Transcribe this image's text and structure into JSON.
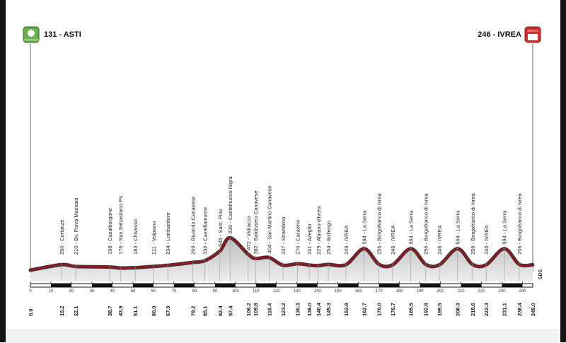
{
  "chart_data": {
    "type": "area",
    "start": {
      "label": "131 - ASTI",
      "altitude": 131,
      "badge": "PARTENZA"
    },
    "finish": {
      "label": "246 - IVREA",
      "altitude": 246,
      "badge": "ARRIVO"
    },
    "x_ticks": [
      0,
      10,
      20,
      30,
      40,
      50,
      60,
      70,
      80,
      90,
      100,
      110,
      120,
      130,
      140,
      150,
      160,
      170,
      180,
      190,
      200,
      210,
      220,
      230,
      240
    ],
    "xlim": [
      0,
      245
    ],
    "ylim": [
      100,
      900
    ],
    "points": [
      {
        "km": "0.0",
        "x": 0.0,
        "alt": 131
      },
      {
        "km": "15.2",
        "x": 15.2,
        "alt": 250,
        "label": "250 - Cortanze"
      },
      {
        "km": "22.1",
        "x": 22.1,
        "alt": 210,
        "label": "210 - Bv. Piovà Massaia"
      },
      {
        "km": "38.7",
        "x": 38.7,
        "alt": 198,
        "label": "198 - Casalborgone"
      },
      {
        "km": "43.9",
        "x": 43.9,
        "alt": 176,
        "label": "176 - San Sebastiano Po"
      },
      {
        "km": "51.1",
        "x": 51.1,
        "alt": 183,
        "label": "183 - Chivasso"
      },
      {
        "km": "60.0",
        "x": 60.0,
        "alt": 211,
        "label": "211 - Volpiano"
      },
      {
        "km": "67.0",
        "x": 67.0,
        "alt": 234,
        "label": "234 - Lombardore"
      },
      {
        "km": "79.2",
        "x": 79.2,
        "alt": 299,
        "label": "299 - Rivarolo Canavese"
      },
      {
        "km": "85.1",
        "x": 85.1,
        "alt": 336,
        "label": "336 - Castellamonte"
      },
      {
        "km": "92.4",
        "x": 92.4,
        "alt": 545,
        "label": "545 - Sant. Piov"
      },
      {
        "km": "97.4",
        "x": 97.4,
        "alt": 830,
        "label": "830 - Castelnuovo Nigra"
      },
      {
        "km": "106.2",
        "x": 106.2,
        "alt": 472,
        "label": "472 - Vidracco"
      },
      {
        "km": "109.8",
        "x": 109.8,
        "alt": 382,
        "label": "382 - Baldissero Canavese"
      },
      {
        "km": "116.4",
        "x": 116.4,
        "alt": 404,
        "label": "404 - San Martino Canavese"
      },
      {
        "km": "123.2",
        "x": 123.2,
        "alt": 237,
        "label": "237 - Strambino"
      },
      {
        "km": "130.3",
        "x": 130.3,
        "alt": 270,
        "label": "270 - Caravino"
      },
      {
        "km": "136.0",
        "x": 136.0,
        "alt": 241,
        "label": "241 - Azeglio"
      },
      {
        "km": "140.4",
        "x": 140.4,
        "alt": 229,
        "label": "229 - Albiano d'Ivrea"
      },
      {
        "km": "145.3",
        "x": 145.3,
        "alt": 254,
        "label": "254 - Bollengo"
      },
      {
        "km": "153.9",
        "x": 153.9,
        "alt": 249,
        "label": "249 - IVREA"
      },
      {
        "km": "162.7",
        "x": 162.7,
        "alt": 594,
        "label": "594 - La Serra"
      },
      {
        "km": "170.0",
        "x": 170.0,
        "alt": 256,
        "label": "256 - Borgofranco di Ivrea"
      },
      {
        "km": "176.7",
        "x": 176.7,
        "alt": 246,
        "label": "246 - IVREA"
      },
      {
        "km": "185.5",
        "x": 185.5,
        "alt": 594,
        "label": "594 - La Serra"
      },
      {
        "km": "192.8",
        "x": 192.8,
        "alt": 256,
        "label": "256 - Borgofranco di Ivrea"
      },
      {
        "km": "199.5",
        "x": 199.5,
        "alt": 246,
        "label": "246 - IVREA"
      },
      {
        "km": "208.3",
        "x": 208.3,
        "alt": 594,
        "label": "594 - La Serra"
      },
      {
        "km": "215.6",
        "x": 215.6,
        "alt": 256,
        "label": "256 - Borgofranco di Ivrea"
      },
      {
        "km": "222.3",
        "x": 222.3,
        "alt": 246,
        "label": "246 - IVREA"
      },
      {
        "km": "231.1",
        "x": 231.1,
        "alt": 594,
        "label": "594 - La Serra"
      },
      {
        "km": "238.4",
        "x": 238.4,
        "alt": 256,
        "label": "256 - Borgofranco di Ivrea"
      },
      {
        "km": "245.0",
        "x": 245.0,
        "alt": 246
      }
    ],
    "colors": {
      "line": "#8b1a23",
      "fill": "#d0d0d0",
      "start_badge": "#6ab04c",
      "finish_badge": "#d32f2f"
    },
    "watermark": "SDS"
  }
}
